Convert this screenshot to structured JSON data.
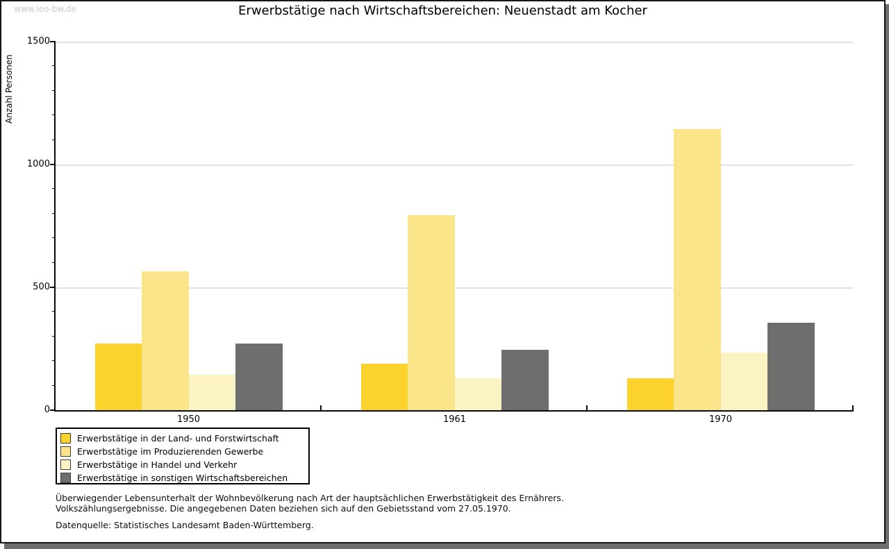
{
  "watermark": "www.leo-bw.de",
  "title": "Erwerbstätige nach Wirtschaftsbereichen: Neuenstadt am Kocher",
  "chart_data": {
    "type": "bar",
    "title": "Erwerbstätige nach Wirtschaftsbereichen: Neuenstadt am Kocher",
    "xlabel": "",
    "ylabel": "Anzahl Personen",
    "ylim": [
      0,
      1500
    ],
    "yticks_major": [
      0,
      500,
      1000,
      1500
    ],
    "ytick_minor_step": 100,
    "grid": "horizontal-light-gray",
    "legend_position": "bottom-left",
    "categories": [
      "1950",
      "1961",
      "1970"
    ],
    "series": [
      {
        "name": "Erwerbstätige in der Land- und Forstwirtschaft",
        "color": "#FCD32D",
        "values": [
          270,
          190,
          130
        ]
      },
      {
        "name": "Erwerbstätige im Produzierenden Gewerbe",
        "color": "#FBE58A",
        "values": [
          565,
          795,
          1145
        ]
      },
      {
        "name": "Erwerbstätige in Handel und Verkehr",
        "color": "#FBF3C4",
        "values": [
          145,
          130,
          235
        ]
      },
      {
        "name": "Erwerbstätige in sonstigen Wirtschaftsbereichen",
        "color": "#6E6E6E",
        "values": [
          270,
          245,
          355
        ]
      }
    ]
  },
  "footer": {
    "line1": "Überwiegender Lebensunterhalt der Wohnbevölkerung nach Art der hauptsächlichen Erwerbstätigkeit des Ernährers.",
    "line2": "Volkszählungsergebnisse. Die angegebenen Daten beziehen sich auf den Gebietsstand vom 27.05.1970.",
    "source": "Datenquelle: Statistisches Landesamt Baden-Württemberg."
  }
}
